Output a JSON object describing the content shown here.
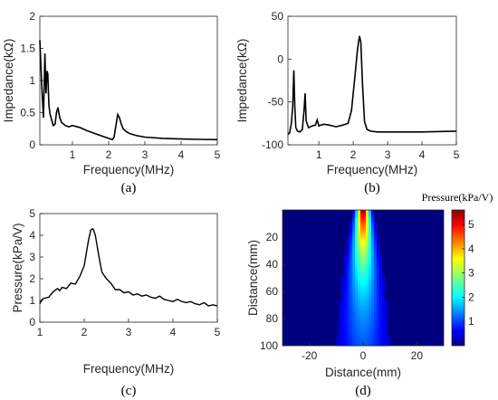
{
  "chart_data": [
    {
      "panel_label": "(a)",
      "type": "line",
      "xlabel": "Frequency(MHz)",
      "ylabel": "Impedance(kΩ)",
      "xlim": [
        0.1,
        5
      ],
      "ylim": [
        0,
        2
      ],
      "xticks": [
        1,
        2,
        3,
        4,
        5
      ],
      "yticks": [
        0,
        0.5,
        1,
        1.5,
        2
      ],
      "ytick_labels": [
        "0",
        "0.5",
        "1",
        "1.5",
        "2"
      ],
      "line_color": "#000000",
      "x": [
        0.1,
        0.15,
        0.2,
        0.24,
        0.27,
        0.3,
        0.32,
        0.35,
        0.38,
        0.42,
        0.47,
        0.52,
        0.56,
        0.6,
        0.65,
        0.7,
        0.8,
        0.9,
        1.0,
        1.2,
        1.4,
        1.6,
        1.8,
        2.0,
        2.1,
        2.15,
        2.2,
        2.25,
        2.3,
        2.35,
        2.4,
        2.5,
        2.6,
        2.8,
        3.0,
        3.5,
        4.0,
        4.5,
        5.0
      ],
      "y": [
        1.63,
        0.95,
        0.42,
        1.42,
        0.8,
        1.15,
        1.1,
        0.62,
        0.48,
        0.4,
        0.3,
        0.32,
        0.5,
        0.58,
        0.42,
        0.35,
        0.3,
        0.28,
        0.3,
        0.27,
        0.22,
        0.18,
        0.14,
        0.1,
        0.08,
        0.12,
        0.3,
        0.47,
        0.42,
        0.32,
        0.25,
        0.2,
        0.17,
        0.14,
        0.12,
        0.1,
        0.09,
        0.085,
        0.08
      ]
    },
    {
      "panel_label": "(b)",
      "type": "line",
      "xlabel": "Frequency(MHz)",
      "ylabel": "Impedance(kΩ)",
      "xlim": [
        0.1,
        5
      ],
      "ylim": [
        -100,
        50
      ],
      "xticks": [
        1,
        2,
        3,
        4,
        5
      ],
      "yticks": [
        -100,
        -50,
        0,
        50
      ],
      "ytick_labels": [
        "-100",
        "-50",
        "0",
        "50"
      ],
      "line_color": "#000000",
      "x": [
        0.1,
        0.15,
        0.2,
        0.24,
        0.27,
        0.3,
        0.33,
        0.38,
        0.45,
        0.52,
        0.57,
        0.6,
        0.63,
        0.7,
        0.8,
        0.9,
        0.95,
        1.0,
        1.05,
        1.15,
        1.3,
        1.5,
        1.7,
        1.85,
        1.95,
        2.05,
        2.12,
        2.18,
        2.22,
        2.27,
        2.33,
        2.4,
        2.5,
        2.7,
        3.0,
        4.0,
        5.0
      ],
      "y": [
        -88,
        -86,
        -75,
        -55,
        -13,
        -55,
        -80,
        -84,
        -85,
        -82,
        -60,
        -40,
        -72,
        -80,
        -78,
        -77,
        -71,
        -78,
        -77,
        -76,
        -77,
        -79,
        -77,
        -75,
        -60,
        -20,
        10,
        27,
        20,
        -30,
        -73,
        -82,
        -84,
        -85,
        -85,
        -85,
        -84
      ]
    },
    {
      "panel_label": "(c)",
      "type": "line",
      "xlabel": "Frequency(MHz)",
      "ylabel": "Pressure(kPa/V)",
      "xlim": [
        1,
        5
      ],
      "ylim": [
        0,
        5
      ],
      "xticks": [
        1,
        2,
        3,
        4,
        5
      ],
      "yticks": [
        0,
        1,
        2,
        3,
        4,
        5
      ],
      "ytick_labels": [
        "0",
        "1",
        "2",
        "3",
        "4",
        "5"
      ],
      "line_color": "#000000",
      "x": [
        1.0,
        1.05,
        1.1,
        1.2,
        1.3,
        1.4,
        1.45,
        1.5,
        1.6,
        1.7,
        1.8,
        1.9,
        2.0,
        2.05,
        2.1,
        2.15,
        2.2,
        2.25,
        2.3,
        2.35,
        2.4,
        2.5,
        2.6,
        2.7,
        2.8,
        2.9,
        3.0,
        3.1,
        3.2,
        3.3,
        3.4,
        3.5,
        3.6,
        3.7,
        3.8,
        3.9,
        4.0,
        4.1,
        4.2,
        4.3,
        4.4,
        4.5,
        4.6,
        4.7,
        4.8,
        4.9,
        5.0
      ],
      "y": [
        0.85,
        1.05,
        1.1,
        1.15,
        1.4,
        1.55,
        1.45,
        1.6,
        1.55,
        1.8,
        1.75,
        2.1,
        2.6,
        3.2,
        3.8,
        4.25,
        4.3,
        4.0,
        3.4,
        2.8,
        2.3,
        2.0,
        1.8,
        1.5,
        1.5,
        1.35,
        1.4,
        1.25,
        1.3,
        1.2,
        1.25,
        1.15,
        1.1,
        1.2,
        1.05,
        1.0,
        0.95,
        1.05,
        0.95,
        0.9,
        0.95,
        0.85,
        0.8,
        0.9,
        0.75,
        0.8,
        0.75
      ]
    },
    {
      "panel_label": "(d)",
      "type": "heatmap",
      "xlabel": "Distance(mm)",
      "ylabel": "Distance(mm)",
      "colorbar_title": "Pressure(kPa/V)",
      "xlim": [
        -30,
        30
      ],
      "ylim": [
        0,
        100
      ],
      "y_reversed": true,
      "xticks": [
        -20,
        0,
        20
      ],
      "yticks": [
        20,
        40,
        60,
        80,
        100
      ],
      "colorbar_range": [
        0,
        5.6
      ],
      "colorbar_ticks": [
        1,
        2,
        3,
        4,
        5
      ],
      "colormap": "jet",
      "description_values": {
        "peak_pressure": 5.5,
        "peak_depth_mm": 3,
        "beam_center_mm": 0
      }
    }
  ]
}
